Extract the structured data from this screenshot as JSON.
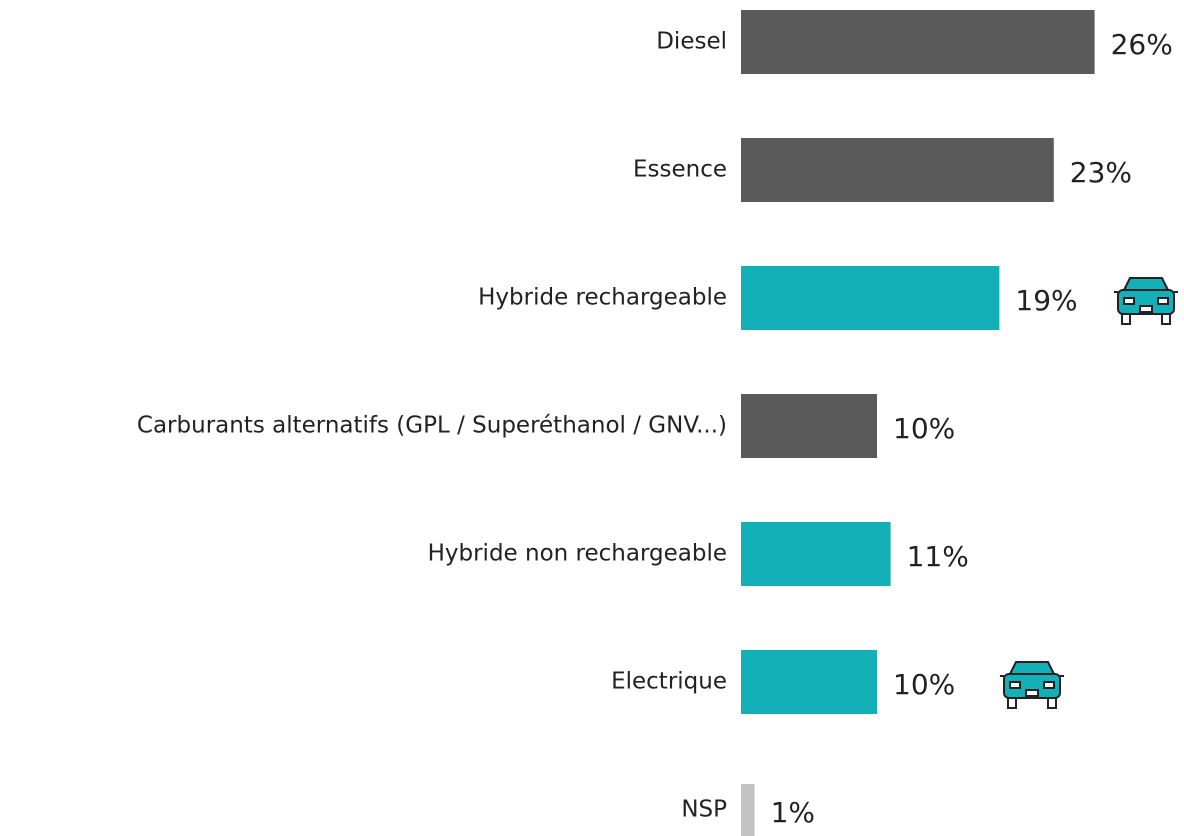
{
  "chart_data": {
    "type": "hbar",
    "categories": [
      "Diesel",
      "Essence",
      "Hybride rechargeable",
      "Carburants alternatifs (GPL / Superéthanol / GNV...)",
      "Hybride non rechargeable",
      "Electrique",
      "NSP"
    ],
    "values": [
      26,
      23,
      19,
      10,
      11,
      10,
      1
    ],
    "value_labels": [
      "26%",
      "23%",
      "19%",
      "10%",
      "11%",
      "10%",
      "1%"
    ],
    "colors": [
      "#5a5a5a",
      "#5a5a5a",
      "#14b0b8",
      "#5a5a5a",
      "#14b0b8",
      "#14b0b8",
      "#c3c3c3"
    ]
  }
}
